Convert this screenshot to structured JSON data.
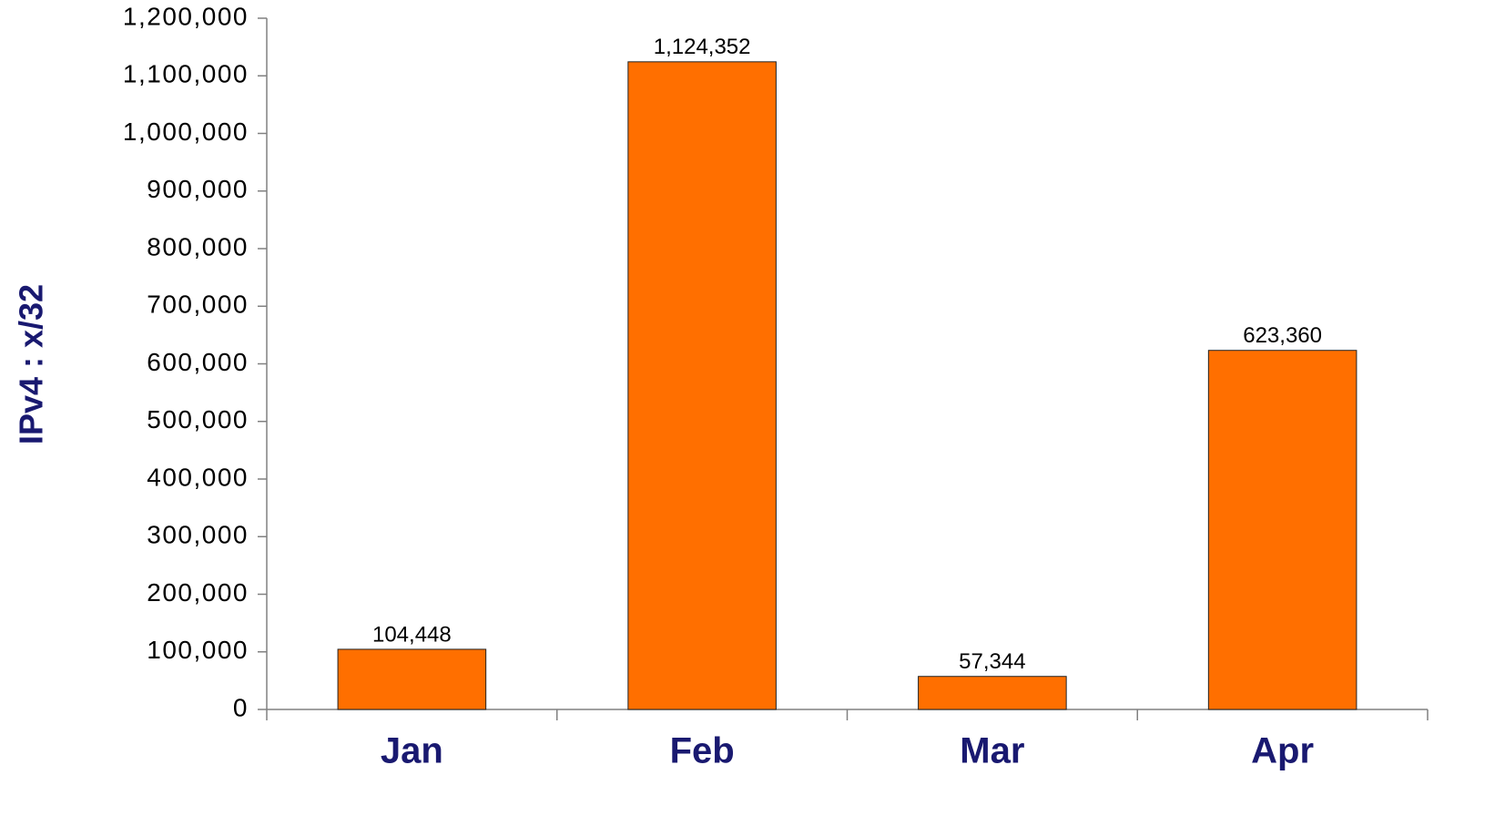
{
  "chart_data": {
    "type": "bar",
    "y_label": "IPv4 : x/32",
    "categories": [
      "Jan",
      "Feb",
      "Mar",
      "Apr"
    ],
    "values": [
      104448,
      1124352,
      57344,
      623360
    ],
    "value_labels": [
      "104,448",
      "1,124,352",
      "57,344",
      "623,360"
    ],
    "color": "#ff6f00",
    "ylim": [
      0,
      1200000
    ],
    "yticks": [
      0,
      {
        "value": 100000,
        "label": "100,000"
      },
      {
        "value": 200000,
        "label": "200,000"
      },
      {
        "value": 300000,
        "label": "300,000"
      },
      {
        "value": 400000,
        "label": "400,000"
      },
      {
        "value": 500000,
        "label": "500,000"
      },
      {
        "value": 600000,
        "label": "600,000"
      },
      {
        "value": 700000,
        "label": "700,000"
      },
      {
        "value": 800000,
        "label": "800,000"
      },
      {
        "value": 900000,
        "label": "900,000"
      },
      {
        "value": 1000000,
        "label": "1,000,000"
      },
      {
        "value": 1100000,
        "label": "1,100,000"
      },
      {
        "value": 1200000,
        "label": "1,200,000"
      }
    ],
    "grid": false
  }
}
